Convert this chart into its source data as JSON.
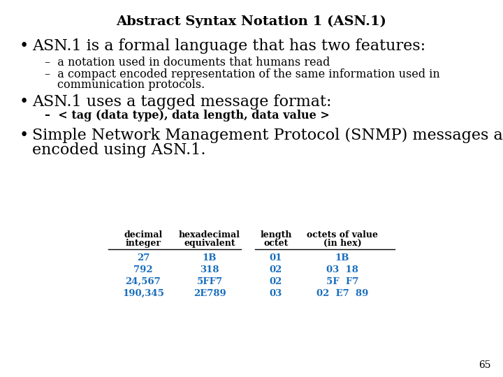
{
  "title": "Abstract Syntax Notation 1 (ASN.1)",
  "title_fontsize": 14,
  "bg_color": "#ffffff",
  "text_color": "#000000",
  "blue_color": "#1a6ebd",
  "bullet1": "ASN.1 is a formal language that has two features:",
  "sub1a": "a notation used in documents that humans read",
  "sub1b_line1": "a compact encoded representation of the same information used in",
  "sub1b_line2": "communication protocols.",
  "bullet2": "ASN.1 uses a tagged message format:",
  "sub2": "< tag (data type), data length, data value >",
  "bullet3_line1": "Simple Network Management Protocol (SNMP) messages are",
  "bullet3_line2": "encoded using ASN.1.",
  "table_data": [
    [
      "27",
      "1B",
      "01",
      "1B"
    ],
    [
      "792",
      "318",
      "02",
      "03  18"
    ],
    [
      "24,567",
      "5FF7",
      "02",
      "5F  F7"
    ],
    [
      "190,345",
      "2E789",
      "03",
      "02  E7  89"
    ]
  ],
  "page_num": "65",
  "bullet_size": 16,
  "sub_size": 11.5,
  "table_header_size": 9,
  "table_data_size": 9.5
}
